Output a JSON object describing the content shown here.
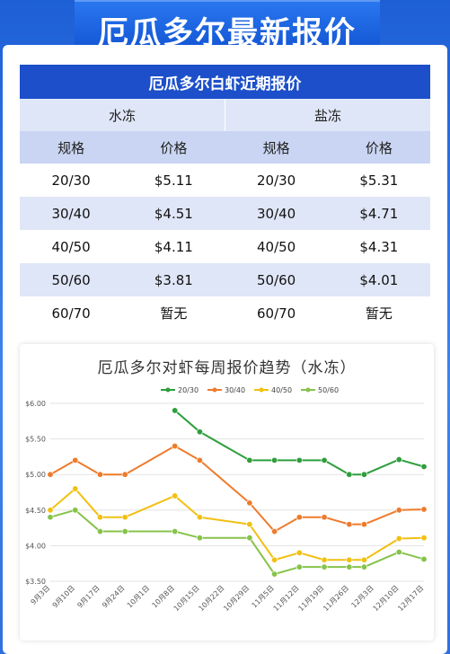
{
  "banner": {
    "title": "厄瓜多尔最新报价"
  },
  "table": {
    "title": "厄瓜多尔白虾近期报价",
    "groups": {
      "left": "水冻",
      "right": "盐冻"
    },
    "headers": {
      "spec": "规格",
      "price": "价格"
    },
    "rows": [
      {
        "spec_l": "20/30",
        "price_l": "$5.11",
        "spec_r": "20/30",
        "price_r": "$5.31"
      },
      {
        "spec_l": "30/40",
        "price_l": "$4.51",
        "spec_r": "30/40",
        "price_r": "$4.71"
      },
      {
        "spec_l": "40/50",
        "price_l": "$4.11",
        "spec_r": "40/50",
        "price_r": "$4.31"
      },
      {
        "spec_l": "50/60",
        "price_l": "$3.81",
        "spec_r": "50/60",
        "price_r": "$4.01"
      },
      {
        "spec_l": "60/70",
        "price_l": "暂无",
        "spec_r": "60/70",
        "price_r": "暂无"
      }
    ]
  },
  "colors": {
    "s2030": "#2e9e3c",
    "s3040": "#ee7b2c",
    "s4050": "#f2c012",
    "s5060": "#86c34a"
  },
  "chart_data": {
    "type": "line",
    "title": "厄瓜多尔对虾每周报价趋势（水冻）",
    "xlabel": "",
    "ylabel": "",
    "ylim": [
      3.5,
      6.0
    ],
    "yticks": [
      "$6.00",
      "$5.50",
      "$5.00",
      "$4.50",
      "$4.00",
      "$3.50"
    ],
    "categories": [
      "9月3日",
      "9月10日",
      "9月17日",
      "9月24日",
      "10月1日",
      "10月8日",
      "10月15日",
      "10月22日",
      "10月29日",
      "11月5日",
      "11月12日",
      "11月19日",
      "11月26日",
      "12月3日",
      "12月10日",
      "12月17日"
    ],
    "legend_position": "top",
    "grid": true,
    "series": [
      {
        "name": "20/30",
        "color_key": "s2030",
        "x": [
          5,
          6,
          8,
          9,
          10,
          11,
          12,
          12.6,
          14,
          15
        ],
        "values": [
          5.9,
          5.6,
          5.2,
          5.2,
          5.2,
          5.2,
          5.0,
          5.0,
          5.21,
          5.11
        ]
      },
      {
        "name": "30/40",
        "color_key": "s3040",
        "x": [
          0,
          1,
          2,
          3,
          5,
          6,
          8,
          9,
          10,
          11,
          12,
          12.6,
          14,
          15
        ],
        "values": [
          5.0,
          5.2,
          5.0,
          5.0,
          5.4,
          5.2,
          4.6,
          4.2,
          4.4,
          4.4,
          4.3,
          4.3,
          4.5,
          4.51
        ]
      },
      {
        "name": "40/50",
        "color_key": "s4050",
        "x": [
          0,
          1,
          2,
          3,
          5,
          6,
          8,
          9,
          10,
          11,
          12,
          12.6,
          14,
          15
        ],
        "values": [
          4.5,
          4.8,
          4.4,
          4.4,
          4.7,
          4.4,
          4.3,
          3.8,
          3.9,
          3.8,
          3.8,
          3.8,
          4.1,
          4.11
        ]
      },
      {
        "name": "50/60",
        "color_key": "s5060",
        "x": [
          0,
          1,
          2,
          3,
          5,
          6,
          8,
          9,
          10,
          11,
          12,
          12.6,
          14,
          15
        ],
        "values": [
          4.4,
          4.5,
          4.2,
          4.2,
          4.2,
          4.11,
          4.11,
          3.6,
          3.7,
          3.7,
          3.7,
          3.7,
          3.91,
          3.81
        ]
      }
    ]
  }
}
